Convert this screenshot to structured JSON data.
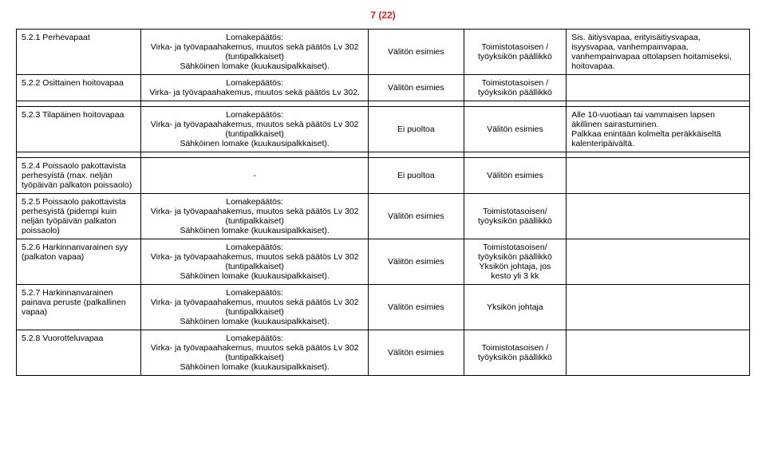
{
  "page_number": "7 (22)",
  "rows": [
    {
      "c1": "5.2.1   Perhevapaat",
      "c2": "Lomakepäätös:\nVirka- ja työvapaahakemus, muutos sekä päätös Lv 302 (tuntipalkkaiset)\nSähköinen lomake (kuukausipalkkaiset).",
      "c3": "Välitön esimies",
      "c4": "Toimistotasoisen / työyksikön päällikkö",
      "c5": "Sis. äitiysvapaa, erityisäitiysvapaa, isyysvapaa, vanhempainvapaa, vanhempainvapaa ottolapsen hoitamiseksi, hoitovapaa."
    },
    {
      "c1": "5.2.2   Osittainen hoitovapaa",
      "c2": "Lomakepäätös:\nVirka- ja työvapaahakemus, muutos sekä päätös Lv 302.",
      "c3": "Välitön esimies",
      "c4": "Toimistotasoisen / työyksikön päällikkö",
      "c5": ""
    },
    {
      "c1": "5.2.3   Tilapäinen hoitovapaa",
      "c2": "Lomakepäätös:\nVirka- ja työvapaahakemus, muutos sekä päätös Lv 302 (tuntipalkkaiset)\nSähköinen lomake (kuukausipalkkaiset).",
      "c3": "Ei puoltoa",
      "c4": "Välitön esimies",
      "c5": "Alle 10-vuotiaan tai vammaisen lapsen äkillinen sairastuminen.\nPalkkaa enintään kolmelta peräkkäiseltä kalenteripäivältä."
    },
    {
      "c1": "5.2.4    Poissaolo pakottavista perhesyistä (max. neljän työpäivän palkaton poissaolo)",
      "c2": "-",
      "c2_center": true,
      "c3": "Ei puoltoa",
      "c4": "Välitön esimies",
      "c5": ""
    },
    {
      "c1": "5.2.5    Poissaolo pakottavista perhesyistä (pidempi kuin neljän työpäivän palkaton poissaolo)",
      "c2": "Lomakepäätös:\nVirka- ja työvapaahakemus, muutos sekä päätös Lv 302 (tuntipalkkaiset)\nSähköinen lomake (kuukausipalkkaiset).",
      "c3": "Välitön esimies",
      "c4": "Toimistotasoisen/ työyksikön päällikkö",
      "c5": ""
    },
    {
      "c1": "5.2.6    Harkinnanvarainen syy (palkaton vapaa)",
      "c2": "Lomakepäätös:\nVirka- ja työvapaahakemus, muutos sekä päätös Lv 302 (tuntipalkkaiset)\nSähköinen lomake (kuukausipalkkaiset).",
      "c3": "Välitön esimies",
      "c4": "Toimistotasoisen/ työyksikön päällikkö\nYksikön johtaja, jos kesto yli 3 kk",
      "c5": ""
    },
    {
      "c1": "5.2.7    Harkinnanvarainen painava peruste (palkallinen vapaa)",
      "c2": "Lomakepäätös:\nVirka- ja työvapaahakemus, muutos sekä päätös Lv 302 (tuntipalkkaiset)\nSähköinen lomake (kuukausipalkkaiset).",
      "c3": "Välitön esimies",
      "c4": "Yksikön johtaja",
      "c5": ""
    },
    {
      "c1": "5.2.8   Vuorotteluvapaa",
      "c2": "Lomakepäätös:\nVirka- ja työvapaahakemus, muutos sekä päätös Lv 302 (tuntipalkkaiset)\nSähköinen lomake (kuukausipalkkaiset).",
      "c3": "Välitön esimies",
      "c4": "Toimistotasoisen / työyksikön päällikkö",
      "c5": ""
    }
  ]
}
